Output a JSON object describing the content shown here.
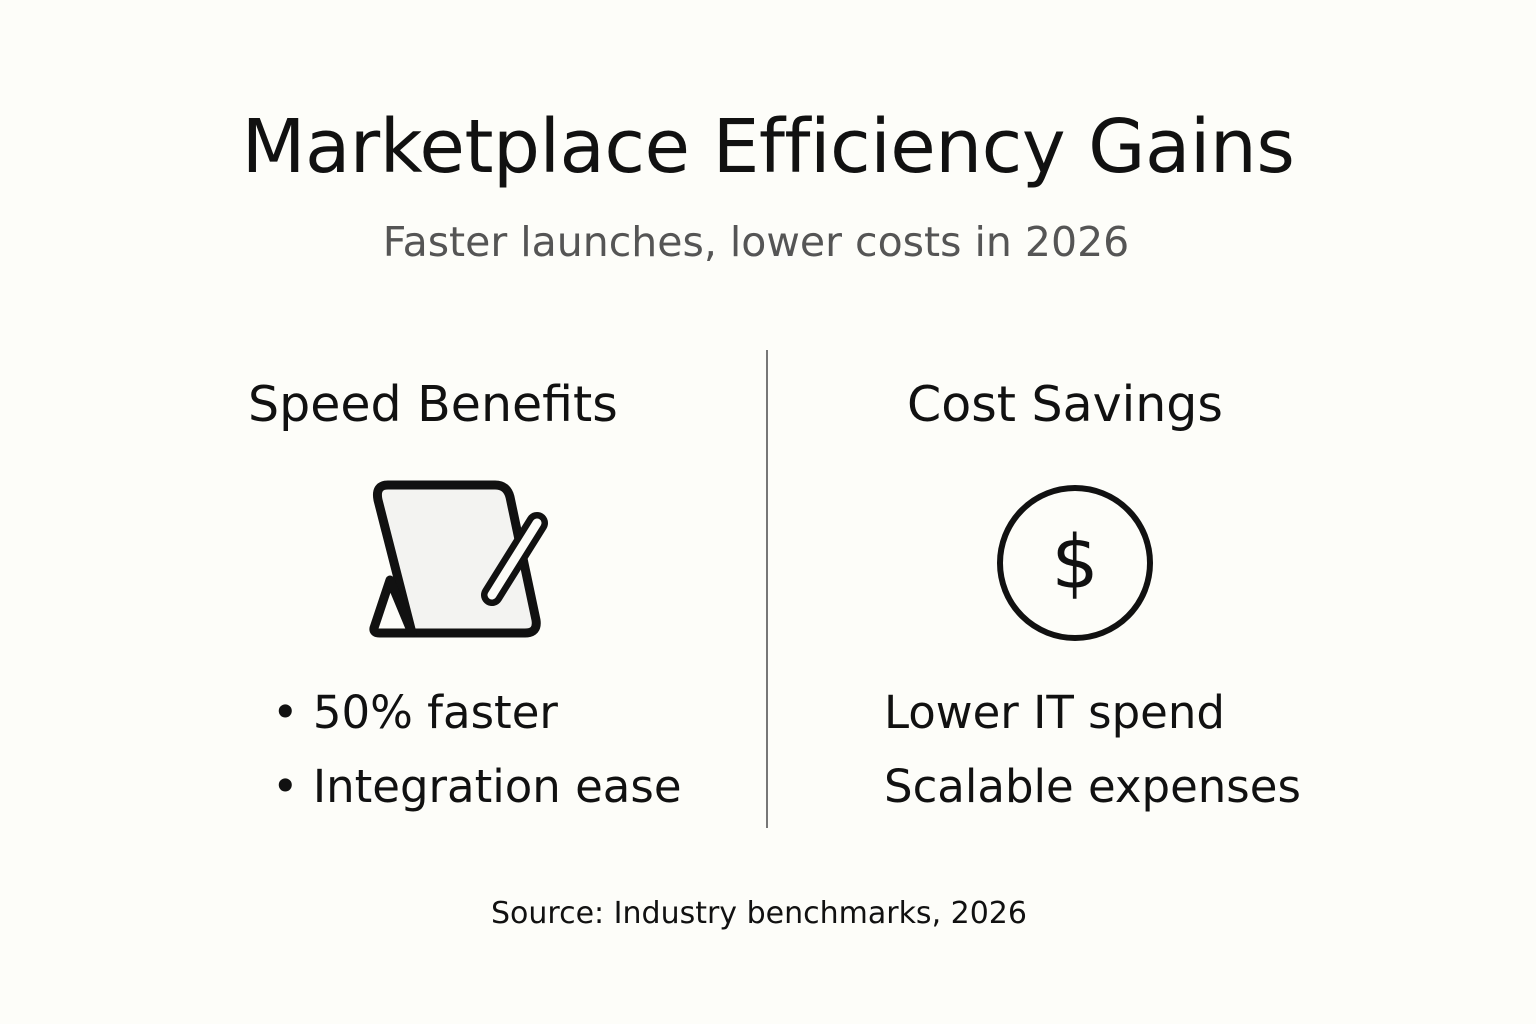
{
  "title": "Marketplace Efficiency Gains",
  "subtitle": "Faster launches, lower costs in 2026",
  "left_panel": {
    "heading": "Speed Benefits",
    "icon": "tablet-stylus-icon",
    "items": [
      "50% faster",
      "Integration ease"
    ]
  },
  "right_panel": {
    "heading": "Cost Savings",
    "icon": "dollar-circle-icon",
    "items": [
      "Lower IT spend",
      "Scalable expenses"
    ]
  },
  "source": "Source: Industry benchmarks, 2026"
}
